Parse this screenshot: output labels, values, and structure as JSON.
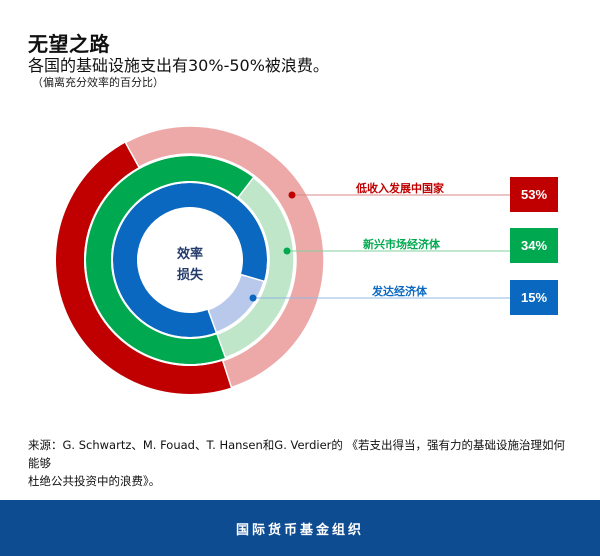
{
  "header": {
    "title": "无望之路",
    "subtitle": "各国的基础设施支出有30%-50%被浪费。",
    "note": "（偏离充分效率的百分比）"
  },
  "chart_data": {
    "type": "pie",
    "subtype": "concentric-donut",
    "title": "无望之路",
    "subtitle": "各国的基础设施支出有30%-50%被浪费。",
    "unit_note": "（偏离充分效率的百分比）",
    "center_label": "效率损失",
    "series": [
      {
        "name": "低收入发展中国家",
        "value": 53,
        "label": "53%",
        "color": "#c00000",
        "light_color": "#eda8a8",
        "ring": "outer"
      },
      {
        "name": "新兴市场经济体",
        "value": 34,
        "label": "34%",
        "color": "#00a94f",
        "light_color": "#bfe6c9",
        "ring": "middle"
      },
      {
        "name": "发达经济体",
        "value": 15,
        "label": "15%",
        "color": "#0a68c0",
        "light_color": "#b8c9ec",
        "ring": "inner"
      }
    ]
  },
  "center": {
    "line1": "效率",
    "line2": "损失"
  },
  "labels": {
    "low_income": "低收入发展中国家",
    "emerging": "新兴市场经济体",
    "advanced": "发达经济体"
  },
  "badges": {
    "low_income": "53%",
    "emerging": "34%",
    "advanced": "15%"
  },
  "colors": {
    "red": "#c00000",
    "green": "#00a94f",
    "blue": "#0a68c0",
    "footer": "#0e4c92"
  },
  "source": {
    "line1": "来源：G. Schwartz、M. Fouad、T. Hansen和G. Verdier的 《若支出得当，强有力的基础设施治理如何能够",
    "line2": "杜绝公共投资中的浪费》。"
  },
  "footer": {
    "org": "国际货币基金组织"
  }
}
